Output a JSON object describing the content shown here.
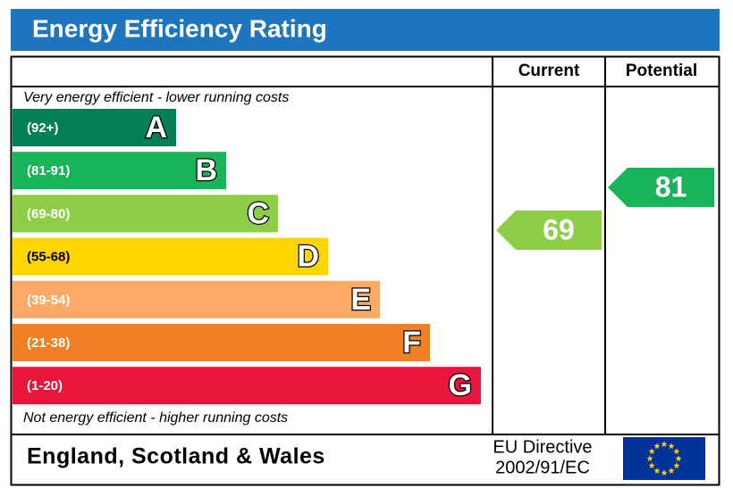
{
  "title": "Energy Efficiency Rating",
  "columns": [
    "Current",
    "Potential"
  ],
  "top_note": "Very energy efficient - lower running costs",
  "bottom_note": "Not energy efficient - higher running costs",
  "bands": [
    {
      "range": "(92+)",
      "letter": "A",
      "color": "#008054"
    },
    {
      "range": "(81-91)",
      "letter": "B",
      "color": "#19b459"
    },
    {
      "range": "(69-80)",
      "letter": "C",
      "color": "#8dce46"
    },
    {
      "range": "(55-68)",
      "letter": "D",
      "color": "#ffd500"
    },
    {
      "range": "(39-54)",
      "letter": "E",
      "color": "#fcaa65"
    },
    {
      "range": "(21-38)",
      "letter": "F",
      "color": "#ef8023"
    },
    {
      "range": "(1-20)",
      "letter": "G",
      "color": "#e9153b"
    }
  ],
  "current": {
    "value": 69,
    "color": "#8dce46"
  },
  "potential": {
    "value": 81,
    "color": "#19b459"
  },
  "footer": {
    "region": "England, Scotland & Wales",
    "directive": [
      "EU Directive",
      "2002/91/EC"
    ]
  }
}
